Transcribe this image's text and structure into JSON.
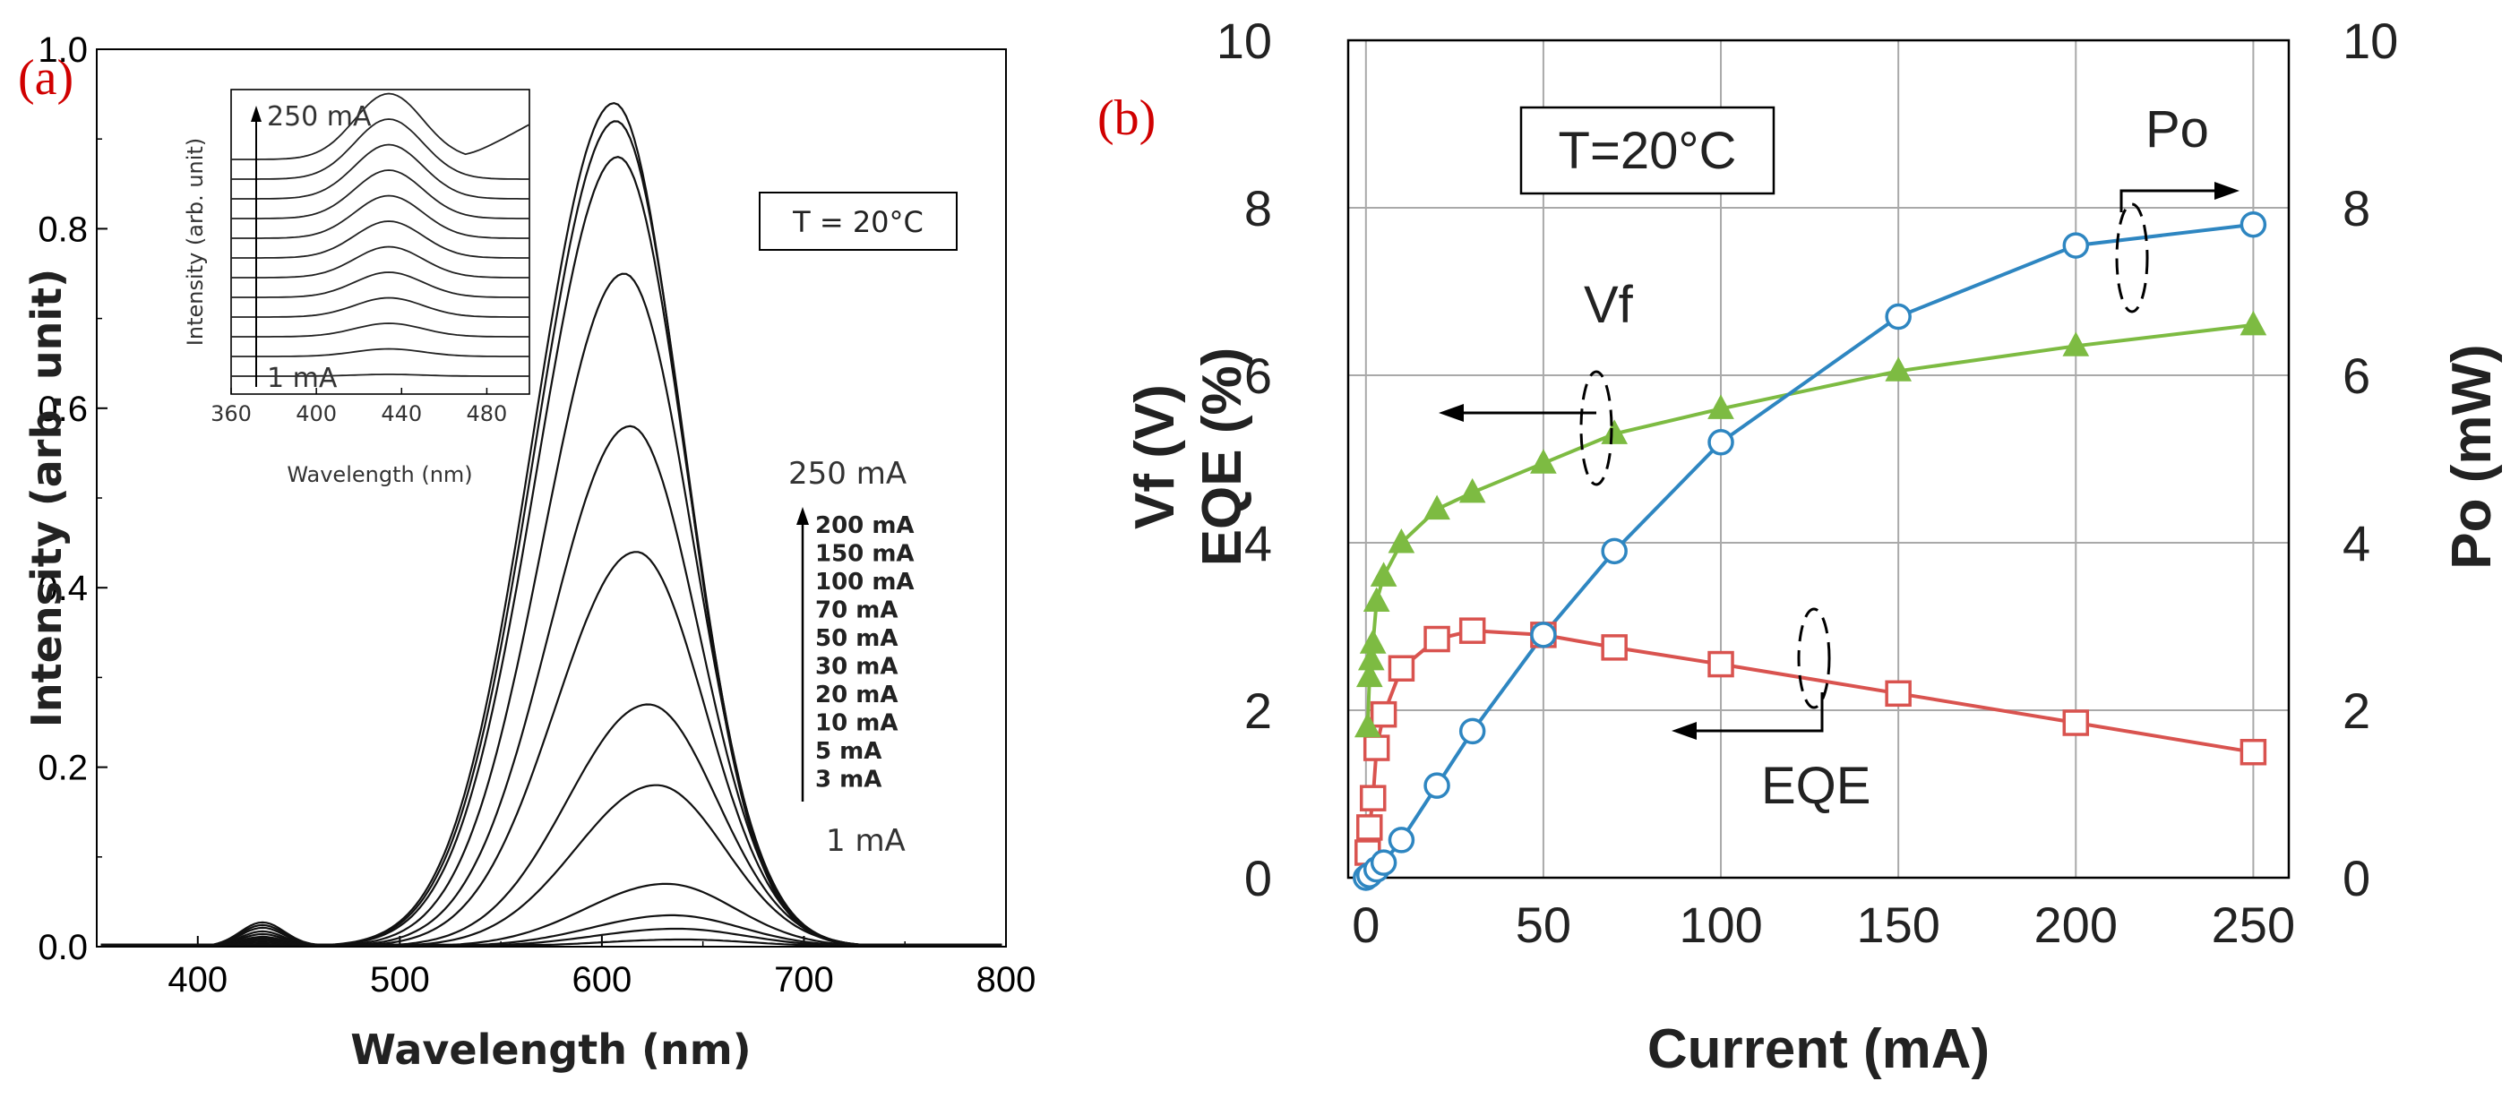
{
  "panel_a": {
    "label": "(a)",
    "temp_box": "T = 20°C",
    "inset_top_label": "250 mA",
    "inset_bottom_label": "1 mA",
    "legend_top": "250 mA",
    "legend_bottom": "1 mA",
    "legend_items": [
      "200 mA",
      "150 mA",
      "100 mA",
      "70 mA",
      "50 mA",
      "30 mA",
      "20 mA",
      "10 mA",
      "5 mA",
      "3 mA"
    ]
  },
  "panel_b": {
    "label": "(b)",
    "temp_box": "T=20°C",
    "ann_po": "Po",
    "ann_vf": "Vf",
    "ann_eqe": "EQE",
    "ylabel_left_line1": "Vf (V)",
    "ylabel_left_line2": "EQE (%)"
  },
  "colors": {
    "po": "#2e86c1",
    "vf": "#7dbb42",
    "eqe": "#d9534f",
    "panel_label": "#d00000"
  },
  "chart_data": [
    {
      "type": "line",
      "xlabel": "Wavelength (nm)",
      "ylabel": "Intensity (arb. unit)",
      "xlim": [
        350,
        800
      ],
      "ylim": [
        0,
        1.0
      ],
      "xticks": [
        400,
        500,
        600,
        700,
        800
      ],
      "yticks": [
        0.0,
        0.2,
        0.4,
        0.6,
        0.8,
        1.0
      ],
      "series": [
        {
          "current_mA": 1,
          "peak_nm": 640,
          "peak": 0.008,
          "blue_peak": 0.001
        },
        {
          "current_mA": 3,
          "peak_nm": 637,
          "peak": 0.02,
          "blue_peak": 0.002
        },
        {
          "current_mA": 5,
          "peak_nm": 635,
          "peak": 0.035,
          "blue_peak": 0.003
        },
        {
          "current_mA": 10,
          "peak_nm": 632,
          "peak": 0.07,
          "blue_peak": 0.005
        },
        {
          "current_mA": 20,
          "peak_nm": 627,
          "peak": 0.18,
          "blue_peak": 0.007
        },
        {
          "current_mA": 30,
          "peak_nm": 623,
          "peak": 0.27,
          "blue_peak": 0.009
        },
        {
          "current_mA": 50,
          "peak_nm": 617,
          "peak": 0.44,
          "blue_peak": 0.011
        },
        {
          "current_mA": 70,
          "peak_nm": 614,
          "peak": 0.58,
          "blue_peak": 0.014
        },
        {
          "current_mA": 100,
          "peak_nm": 611,
          "peak": 0.75,
          "blue_peak": 0.017
        },
        {
          "current_mA": 150,
          "peak_nm": 608,
          "peak": 0.88,
          "blue_peak": 0.021
        },
        {
          "current_mA": 200,
          "peak_nm": 607,
          "peak": 0.92,
          "blue_peak": 0.024
        },
        {
          "current_mA": 250,
          "peak_nm": 606,
          "peak": 0.94,
          "blue_peak": 0.027
        }
      ],
      "inset": {
        "xlabel": "Wavelength (nm)",
        "ylabel": "Intensity (arb. unit)",
        "xlim": [
          360,
          500
        ],
        "xticks": [
          360,
          400,
          440,
          480
        ]
      }
    },
    {
      "type": "line",
      "xlabel": "Current (mA)",
      "ylabel_left": "Vf (V) EQE (%)",
      "ylabel_right": "Po (mW)",
      "xlim": [
        -5,
        260
      ],
      "ylim_left": [
        0,
        10
      ],
      "ylim_right": [
        0,
        10
      ],
      "xticks": [
        0,
        50,
        100,
        150,
        200,
        250
      ],
      "yticks": [
        0,
        2,
        4,
        6,
        8,
        10
      ],
      "series": [
        {
          "name": "Po",
          "axis": "right",
          "marker": "circle",
          "x": [
            0,
            1,
            3,
            5,
            10,
            20,
            30,
            50,
            70,
            100,
            150,
            200,
            250
          ],
          "y": [
            0.0,
            0.03,
            0.1,
            0.18,
            0.45,
            1.1,
            1.75,
            2.9,
            3.9,
            5.2,
            6.7,
            7.55,
            7.8
          ]
        },
        {
          "name": "Vf",
          "axis": "left",
          "marker": "triangle",
          "x": [
            0.5,
            1,
            1.5,
            2,
            3,
            5,
            10,
            20,
            30,
            50,
            70,
            100,
            150,
            200,
            250
          ],
          "y": [
            1.8,
            2.4,
            2.6,
            2.8,
            3.3,
            3.6,
            4.0,
            4.4,
            4.6,
            4.95,
            5.3,
            5.6,
            6.05,
            6.35,
            6.6
          ]
        },
        {
          "name": "EQE",
          "axis": "left",
          "marker": "square",
          "x": [
            0.5,
            1,
            2,
            3,
            5,
            10,
            20,
            30,
            50,
            70,
            100,
            150,
            200,
            250
          ],
          "y": [
            0.3,
            0.6,
            0.95,
            1.55,
            1.95,
            2.5,
            2.85,
            2.95,
            2.9,
            2.75,
            2.55,
            2.2,
            1.85,
            1.5
          ]
        }
      ]
    }
  ]
}
